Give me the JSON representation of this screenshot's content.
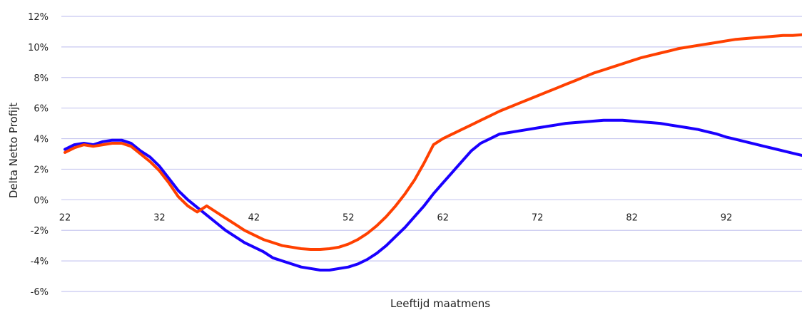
{
  "chart_data": {
    "type": "line",
    "title": "",
    "xlabel": "Leeftijd maatmens",
    "ylabel": "Delta Netto Profijt",
    "xlim": [
      22,
      100
    ],
    "ylim": [
      -6,
      12
    ],
    "y_ticks": [
      -6,
      -4,
      -2,
      0,
      2,
      4,
      6,
      8,
      10,
      12
    ],
    "y_tick_labels": [
      "-6%",
      "-4%",
      "-2%",
      "0%",
      "2%",
      "4%",
      "6%",
      "8%",
      "10%",
      "12%"
    ],
    "x_ticks": [
      22,
      32,
      42,
      52,
      62,
      72,
      82,
      92
    ],
    "x_tick_labels": [
      "22",
      "32",
      "42",
      "52",
      "62",
      "72",
      "82",
      "92"
    ],
    "grid": true,
    "legend": "none",
    "series": [
      {
        "color": "#1a00ff",
        "x": [
          22,
          23,
          24,
          25,
          26,
          27,
          28,
          29,
          30,
          31,
          32,
          33,
          34,
          35,
          36,
          37,
          38,
          39,
          40,
          41,
          42,
          43,
          44,
          45,
          46,
          47,
          48,
          49,
          50,
          51,
          52,
          53,
          54,
          55,
          56,
          57,
          58,
          59,
          60,
          61,
          62,
          63,
          64,
          65,
          66,
          67,
          68,
          69,
          70,
          71,
          72,
          73,
          74,
          75,
          76,
          77,
          78,
          79,
          80,
          81,
          82,
          83,
          84,
          85,
          86,
          87,
          88,
          89,
          90,
          91,
          92,
          93,
          94,
          95,
          96,
          97,
          98,
          99,
          100
        ],
        "y": [
          3.3,
          3.6,
          3.7,
          3.6,
          3.8,
          3.9,
          3.9,
          3.7,
          3.2,
          2.8,
          2.2,
          1.4,
          0.6,
          0.0,
          -0.5,
          -1.0,
          -1.5,
          -2.0,
          -2.4,
          -2.8,
          -3.1,
          -3.4,
          -3.8,
          -4.0,
          -4.2,
          -4.4,
          -4.5,
          -4.6,
          -4.6,
          -4.5,
          -4.4,
          -4.2,
          -3.9,
          -3.5,
          -3.0,
          -2.4,
          -1.8,
          -1.1,
          -0.4,
          0.4,
          1.1,
          1.8,
          2.5,
          3.2,
          3.7,
          4.0,
          4.3,
          4.4,
          4.5,
          4.6,
          4.7,
          4.8,
          4.9,
          5.0,
          5.05,
          5.1,
          5.15,
          5.2,
          5.2,
          5.2,
          5.15,
          5.1,
          5.05,
          5.0,
          4.9,
          4.8,
          4.7,
          4.6,
          4.45,
          4.3,
          4.1,
          3.95,
          3.8,
          3.65,
          3.5,
          3.35,
          3.2,
          3.05,
          2.9
        ]
      },
      {
        "color": "#ff4000",
        "x": [
          22,
          23,
          24,
          25,
          26,
          27,
          28,
          29,
          30,
          31,
          32,
          33,
          34,
          35,
          36,
          37,
          38,
          39,
          40,
          41,
          42,
          43,
          44,
          45,
          46,
          47,
          48,
          49,
          50,
          51,
          52,
          53,
          54,
          55,
          56,
          57,
          58,
          59,
          60,
          61,
          62,
          63,
          64,
          65,
          66,
          67,
          68,
          69,
          70,
          71,
          72,
          73,
          74,
          75,
          76,
          77,
          78,
          79,
          80,
          81,
          82,
          83,
          84,
          85,
          86,
          87,
          88,
          89,
          90,
          91,
          92,
          93,
          94,
          95,
          96,
          97,
          98,
          99,
          100
        ],
        "y": [
          3.1,
          3.4,
          3.6,
          3.5,
          3.6,
          3.7,
          3.7,
          3.5,
          3.0,
          2.5,
          1.9,
          1.1,
          0.2,
          -0.4,
          -0.8,
          -0.4,
          -0.8,
          -1.2,
          -1.6,
          -2.0,
          -2.3,
          -2.6,
          -2.8,
          -3.0,
          -3.1,
          -3.2,
          -3.25,
          -3.25,
          -3.2,
          -3.1,
          -2.9,
          -2.6,
          -2.2,
          -1.7,
          -1.1,
          -0.4,
          0.4,
          1.3,
          2.4,
          3.6,
          4.0,
          4.3,
          4.6,
          4.9,
          5.2,
          5.5,
          5.8,
          6.05,
          6.3,
          6.55,
          6.8,
          7.05,
          7.3,
          7.55,
          7.8,
          8.05,
          8.3,
          8.5,
          8.7,
          8.9,
          9.1,
          9.3,
          9.45,
          9.6,
          9.75,
          9.9,
          10.0,
          10.1,
          10.2,
          10.3,
          10.4,
          10.5,
          10.55,
          10.6,
          10.65,
          10.7,
          10.75,
          10.75,
          10.8
        ]
      }
    ]
  }
}
